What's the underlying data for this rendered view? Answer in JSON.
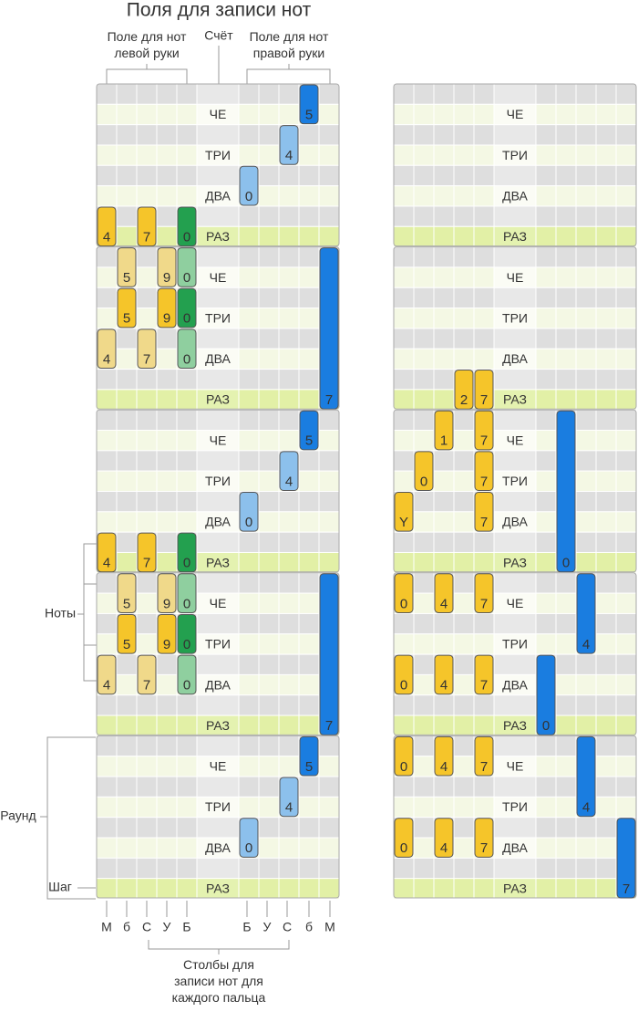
{
  "title": "Поля для записи нот",
  "annotations": {
    "left_field": "Поле для нот левой руки",
    "count": "Счёт",
    "right_field": "Поле для нот правой руки",
    "notes": "Ноты",
    "round": "Раунд",
    "step": "Шаг",
    "columns": "Столбы для записи нот для каждого пальца"
  },
  "count_labels": [
    "ЧЕ",
    "ТРИ",
    "ДВА",
    "РАЗ"
  ],
  "column_labels": [
    "М",
    "б",
    "С",
    "У",
    "Б",
    "Б",
    "У",
    "С",
    "б",
    "М"
  ],
  "grids": [
    {
      "rounds": [
        {
          "notes": [
            "5",
            "4",
            "0",
            "4",
            "7",
            "0"
          ]
        },
        {
          "notes": [
            "5",
            "9",
            "0",
            "5",
            "9",
            "0",
            "4",
            "7",
            "0",
            "7"
          ]
        },
        {
          "notes": [
            "5",
            "4",
            "0",
            "4",
            "7",
            "0"
          ]
        },
        {
          "notes": [
            "5",
            "9",
            "0",
            "5",
            "9",
            "0",
            "4",
            "7",
            "0",
            "7"
          ]
        },
        {
          "notes": [
            "5",
            "4",
            "0"
          ]
        }
      ]
    },
    {
      "rounds": [
        {
          "notes": []
        },
        {
          "notes": [
            "2",
            "7"
          ]
        },
        {
          "notes": [
            "1",
            "7",
            "0",
            "7",
            "Y",
            "7",
            "0"
          ]
        },
        {
          "notes": [
            "0",
            "4",
            "7",
            "4",
            "0",
            "4",
            "7",
            "0"
          ]
        },
        {
          "notes": [
            "0",
            "4",
            "7",
            "4",
            "0",
            "4",
            "7",
            "7"
          ]
        }
      ]
    }
  ]
}
